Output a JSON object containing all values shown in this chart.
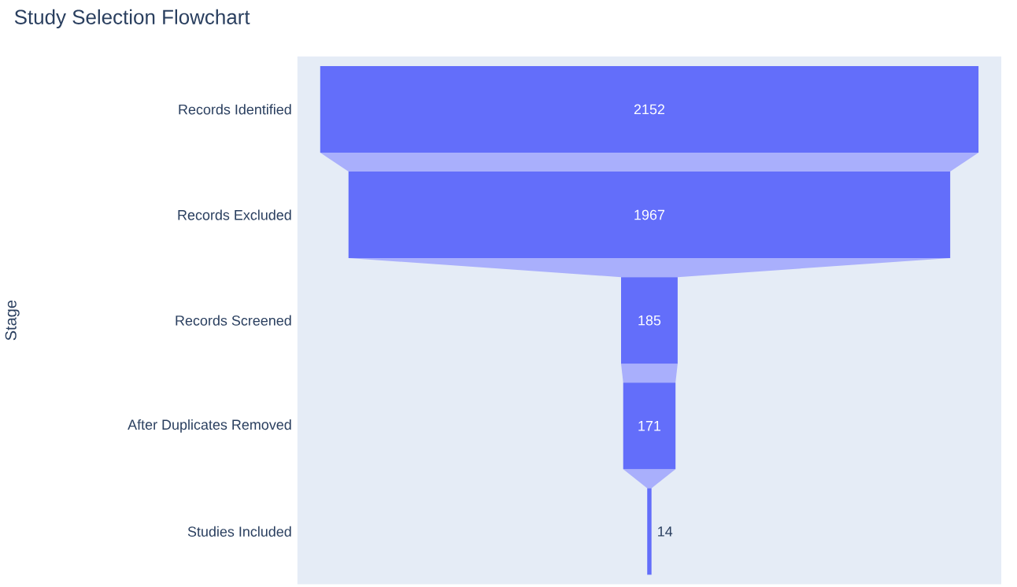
{
  "chart_data": {
    "type": "other",
    "title": "Study Selection Flowchart",
    "ylabel": "Stage",
    "categories": [
      "Records Identified",
      "Records Excluded",
      "Records Screened",
      "After Duplicates Removed",
      "Studies Included"
    ],
    "values": [
      2152,
      1967,
      185,
      171,
      14
    ],
    "color": "#636efa",
    "data_labels": true
  }
}
